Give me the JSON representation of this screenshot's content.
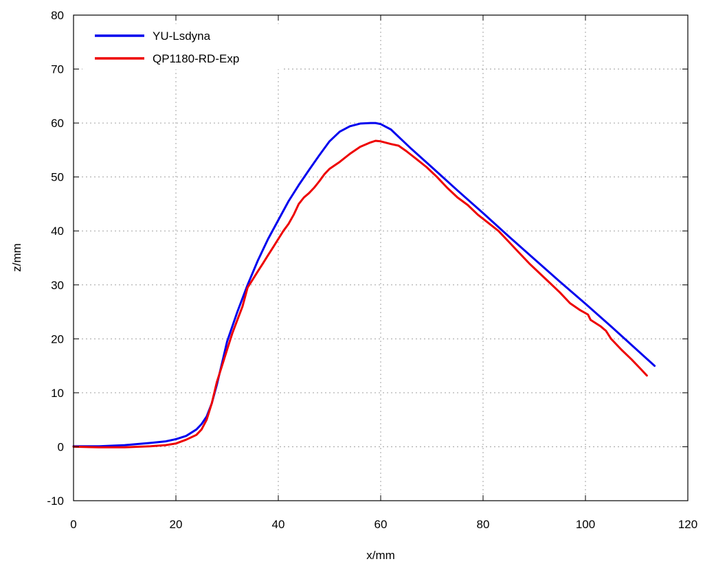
{
  "chart_data": {
    "type": "line",
    "xlabel": "x/mm",
    "ylabel": "z/mm",
    "xlim": [
      0,
      120
    ],
    "ylim": [
      -10,
      80
    ],
    "xticks": [
      0,
      20,
      40,
      60,
      80,
      100,
      120
    ],
    "yticks": [
      -10,
      0,
      10,
      20,
      30,
      40,
      50,
      60,
      70,
      80
    ],
    "grid": true,
    "legend_position": "top-left",
    "series": [
      {
        "name": "YU-Lsdyna",
        "color": "#0000ee",
        "x": [
          0,
          5,
          10,
          15,
          18,
          20,
          22,
          24,
          25,
          26,
          27,
          28,
          29,
          30,
          32,
          34,
          36,
          38,
          40,
          42,
          44,
          46,
          48,
          50,
          52,
          54,
          56,
          58,
          59,
          60,
          62,
          64,
          66,
          70,
          75,
          80,
          85,
          90,
          95,
          100,
          105,
          110,
          113.5
        ],
        "y": [
          0.1,
          0.1,
          0.3,
          0.7,
          1.0,
          1.4,
          2.0,
          3.2,
          4.2,
          5.6,
          8.0,
          11.5,
          15.5,
          19.5,
          25.0,
          30.0,
          34.5,
          38.5,
          42.0,
          45.5,
          48.5,
          51.3,
          54.0,
          56.6,
          58.4,
          59.4,
          59.9,
          60.0,
          60.0,
          59.8,
          58.8,
          57.0,
          55.2,
          51.8,
          47.5,
          43.3,
          39.0,
          34.8,
          30.6,
          26.5,
          22.3,
          18.0,
          15.0
        ]
      },
      {
        "name": "QP1180-RD-Exp",
        "color": "#ee0000",
        "x": [
          0,
          5,
          10,
          15,
          18,
          20,
          22,
          24,
          25,
          26,
          27,
          28,
          29,
          30,
          31,
          32,
          33,
          34,
          35,
          36,
          37,
          38,
          39,
          40,
          41,
          42,
          43,
          44,
          45,
          46,
          47,
          48,
          49,
          50,
          52,
          54,
          56,
          58,
          59,
          60,
          62,
          63.5,
          65,
          67,
          69,
          71,
          73,
          75,
          77,
          79,
          81,
          83,
          85,
          87,
          89,
          91,
          93,
          95,
          97,
          99,
          100.5,
          101,
          103,
          104,
          105,
          107,
          109,
          111,
          112
        ],
        "y": [
          0.0,
          -0.1,
          -0.1,
          0.1,
          0.3,
          0.6,
          1.3,
          2.2,
          3.2,
          5.0,
          8.0,
          12.0,
          15.0,
          18.0,
          21.0,
          23.5,
          26.0,
          29.5,
          31.0,
          32.5,
          34.0,
          35.5,
          37.0,
          38.5,
          40.0,
          41.3,
          43.0,
          45.0,
          46.2,
          47.0,
          48.0,
          49.2,
          50.5,
          51.5,
          52.8,
          54.3,
          55.6,
          56.4,
          56.7,
          56.6,
          56.1,
          55.8,
          54.8,
          53.3,
          51.8,
          50.0,
          48.0,
          46.2,
          44.8,
          43.0,
          41.5,
          40.0,
          38.0,
          36.0,
          34.0,
          32.2,
          30.4,
          28.6,
          26.6,
          25.3,
          24.5,
          23.5,
          22.3,
          21.5,
          20.0,
          18.0,
          16.2,
          14.2,
          13.2
        ]
      }
    ]
  }
}
